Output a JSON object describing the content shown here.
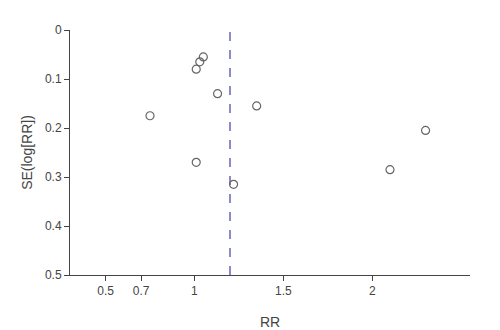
{
  "chart_data": {
    "type": "scatter",
    "xlabel": "RR",
    "ylabel": "SE(log[RR])",
    "x": [
      0.75,
      1.01,
      1.03,
      1.05,
      1.13,
      1.35,
      1.01,
      2.3,
      1.22,
      2.1
    ],
    "values": [
      0.175,
      0.08,
      0.065,
      0.055,
      0.13,
      0.155,
      0.27,
      0.205,
      0.315,
      0.285
    ],
    "color": "#666666",
    "marker": "open circle",
    "xlim": [
      0.3,
      2.55
    ],
    "ylim": [
      0.5,
      0.0
    ],
    "xticks": [
      0.5,
      0.7,
      1,
      1.5,
      2
    ],
    "yticks": [
      0,
      0.1,
      0.2,
      0.3,
      0.4,
      0.5
    ],
    "vline": {
      "x": 1.2,
      "color": "#6666bb",
      "line_style": "dashed"
    },
    "grid": false
  }
}
